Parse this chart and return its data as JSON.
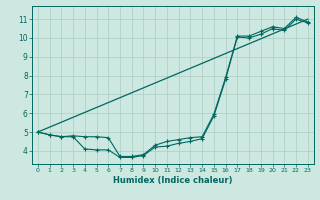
{
  "xlabel": "Humidex (Indice chaleur)",
  "bg_color": "#cce8e0",
  "grid_color": "#aaccc4",
  "line_color": "#006860",
  "xlim": [
    -0.5,
    23.5
  ],
  "ylim": [
    3.3,
    11.7
  ],
  "yticks": [
    4,
    5,
    6,
    7,
    8,
    9,
    10,
    11
  ],
  "xticks": [
    0,
    1,
    2,
    3,
    4,
    5,
    6,
    7,
    8,
    9,
    10,
    11,
    12,
    13,
    14,
    15,
    16,
    17,
    18,
    19,
    20,
    21,
    22,
    23
  ],
  "line1_x": [
    0,
    23
  ],
  "line1_y": [
    5.0,
    11.0
  ],
  "line2_x": [
    0,
    1,
    2,
    3,
    4,
    5,
    6,
    7,
    8,
    9,
    10,
    11,
    12,
    13,
    14,
    15,
    16,
    17,
    18,
    19,
    20,
    21,
    22,
    23
  ],
  "line2_y": [
    5.0,
    4.85,
    4.75,
    4.8,
    4.75,
    4.75,
    4.7,
    3.7,
    3.7,
    3.8,
    4.3,
    4.5,
    4.6,
    4.7,
    4.75,
    5.95,
    7.9,
    10.1,
    10.1,
    10.35,
    10.6,
    10.5,
    11.1,
    10.85
  ],
  "line3_x": [
    0,
    1,
    2,
    3,
    4,
    5,
    6,
    7,
    8,
    9,
    10,
    11,
    12,
    13,
    14,
    15,
    16,
    17,
    18,
    19,
    20,
    21,
    22,
    23
  ],
  "line3_y": [
    5.0,
    4.85,
    4.75,
    4.75,
    4.1,
    4.05,
    4.05,
    3.65,
    3.65,
    3.75,
    4.2,
    4.25,
    4.4,
    4.5,
    4.65,
    5.85,
    7.8,
    10.05,
    10.0,
    10.2,
    10.5,
    10.4,
    11.0,
    10.8
  ]
}
